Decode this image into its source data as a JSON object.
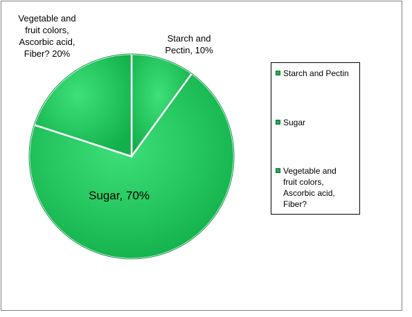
{
  "chart_data": {
    "type": "pie",
    "title": "",
    "slices": [
      {
        "name": "Starch and Pectin",
        "value": 10,
        "label": "Starch and\nPectin, 10%"
      },
      {
        "name": "Sugar",
        "value": 70,
        "label": "Sugar, 70%"
      },
      {
        "name": "Vegetable and fruit colors, Ascorbic acid, Fiber?",
        "value": 20,
        "label": "Vegetable and\nfruit colors,\nAscorbic acid,\nFiber?  20%"
      }
    ],
    "legend": {
      "placement": "right",
      "entries": [
        "Starch and Pectin",
        "Sugar",
        "Vegetable and\nfruit colors,\nAscorbic acid,\nFiber?"
      ]
    },
    "colors": {
      "slice_fill": "#1fc45c",
      "slice_highlight": "#3ee07a",
      "slice_edge": "#ffffff",
      "legend_swatch": "#1fae50"
    }
  }
}
